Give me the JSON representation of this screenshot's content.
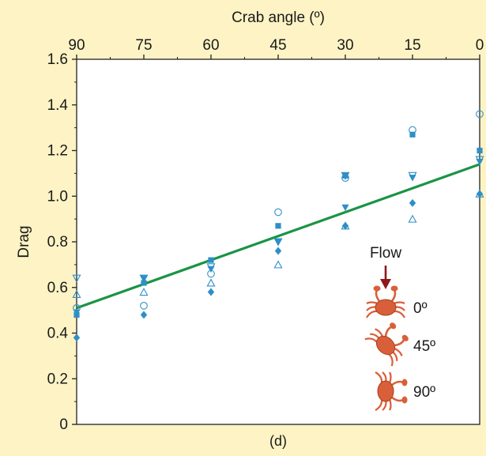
{
  "chart_data": {
    "type": "scatter",
    "title": "",
    "xlabel": "Crab angle (º)",
    "ylabel": "Drag",
    "caption": "(d)",
    "x_reversed": true,
    "x_ticks": [
      90,
      75,
      60,
      45,
      30,
      15,
      0
    ],
    "y_ticks": [
      0,
      0.2,
      0.4,
      0.6,
      0.8,
      1.0,
      1.2,
      1.4,
      1.6
    ],
    "y_tick_labels": [
      "0",
      "0.2",
      "0.4",
      "0.6",
      "0.8",
      "1.0",
      "1.2",
      "1.4",
      "1.6"
    ],
    "xlim": [
      90,
      0
    ],
    "ylim": [
      0,
      1.6
    ],
    "grid": false,
    "series": [
      {
        "marker": "open-circle",
        "points": [
          [
            90,
            0.51
          ],
          [
            75,
            0.52
          ],
          [
            60,
            0.66
          ],
          [
            45,
            0.93
          ],
          [
            30,
            1.08
          ],
          [
            15,
            1.29
          ],
          [
            0,
            1.36
          ]
        ]
      },
      {
        "marker": "filled-square",
        "points": [
          [
            90,
            0.48
          ],
          [
            75,
            0.62
          ],
          [
            60,
            0.72
          ],
          [
            45,
            0.87
          ],
          [
            30,
            1.09
          ],
          [
            15,
            1.27
          ],
          [
            0,
            1.2
          ]
        ]
      },
      {
        "marker": "filled-down-triangle",
        "points": [
          [
            90,
            0.49
          ],
          [
            75,
            0.64
          ],
          [
            60,
            0.68
          ],
          [
            45,
            0.8
          ],
          [
            30,
            0.95
          ],
          [
            15,
            1.08
          ],
          [
            0,
            1.15
          ]
        ]
      },
      {
        "marker": "open-down-triangle",
        "points": [
          [
            90,
            0.64
          ],
          [
            75,
            0.64
          ],
          [
            60,
            0.69
          ],
          [
            45,
            0.8
          ],
          [
            30,
            1.09
          ],
          [
            15,
            1.09
          ],
          [
            0,
            1.16
          ]
        ]
      },
      {
        "marker": "open-up-triangle",
        "points": [
          [
            90,
            0.57
          ],
          [
            75,
            0.58
          ],
          [
            60,
            0.62
          ],
          [
            45,
            0.7
          ],
          [
            30,
            0.87
          ],
          [
            15,
            0.9
          ],
          [
            0,
            1.01
          ]
        ]
      },
      {
        "marker": "filled-diamond",
        "points": [
          [
            90,
            0.38
          ],
          [
            75,
            0.48
          ],
          [
            60,
            0.58
          ],
          [
            45,
            0.76
          ],
          [
            30,
            0.87
          ],
          [
            15,
            0.97
          ],
          [
            0,
            1.01
          ]
        ]
      }
    ],
    "trendline": {
      "color": "#1a9444",
      "from": [
        90,
        0.51
      ],
      "to": [
        0,
        1.14
      ]
    },
    "marker_color": "#2e8fc7",
    "inset": {
      "flow_label": "Flow",
      "arrow_color": "#8c1a1a",
      "crab_color": "#d95f3a",
      "crabs": [
        {
          "label": "0º",
          "angle": 0
        },
        {
          "label": "45º",
          "angle": 45
        },
        {
          "label": "90º",
          "angle": 90
        }
      ]
    }
  }
}
